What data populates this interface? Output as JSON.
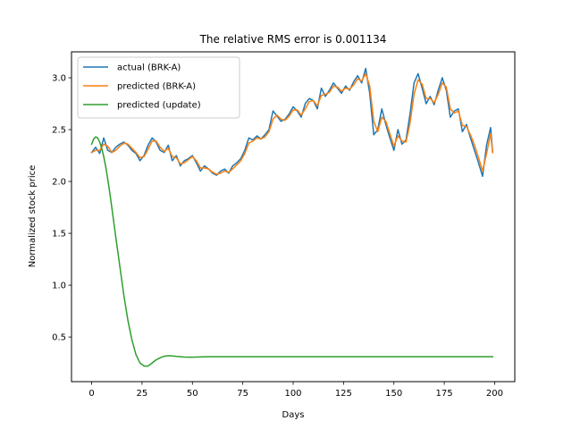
{
  "chart_data": {
    "type": "line",
    "title": "The relative RMS error is 0.001134",
    "xlabel": "Days",
    "ylabel": "Normalized stock price",
    "xlim": [
      -10,
      210
    ],
    "ylim": [
      0.07,
      3.25
    ],
    "xticks": [
      0,
      25,
      50,
      75,
      100,
      125,
      150,
      175,
      200
    ],
    "yticks": [
      0.5,
      1.0,
      1.5,
      2.0,
      2.5,
      3.0
    ],
    "ytick_labels": [
      "0.5",
      "1.0",
      "1.5",
      "2.0",
      "2.5",
      "3.0"
    ],
    "grid": false,
    "legend_position": "upper left",
    "series": [
      {
        "name": "actual (BRK-A)",
        "color": "#1f77b4",
        "x": [
          0,
          2,
          4,
          6,
          8,
          10,
          12,
          14,
          16,
          18,
          20,
          22,
          24,
          26,
          28,
          30,
          32,
          34,
          36,
          38,
          40,
          42,
          44,
          46,
          48,
          50,
          52,
          54,
          56,
          58,
          60,
          62,
          64,
          66,
          68,
          70,
          72,
          74,
          76,
          78,
          80,
          82,
          84,
          86,
          88,
          90,
          92,
          94,
          96,
          98,
          100,
          102,
          104,
          106,
          108,
          110,
          112,
          114,
          116,
          118,
          120,
          122,
          124,
          126,
          128,
          130,
          132,
          134,
          136,
          138,
          140,
          142,
          144,
          146,
          148,
          150,
          152,
          154,
          156,
          158,
          160,
          162,
          164,
          166,
          168,
          170,
          172,
          174,
          176,
          178,
          180,
          182,
          184,
          186,
          188,
          190,
          192,
          194,
          196,
          198,
          199
        ],
        "values": [
          2.28,
          2.33,
          2.27,
          2.42,
          2.3,
          2.28,
          2.33,
          2.36,
          2.38,
          2.35,
          2.3,
          2.27,
          2.2,
          2.25,
          2.35,
          2.42,
          2.38,
          2.3,
          2.28,
          2.35,
          2.2,
          2.25,
          2.15,
          2.2,
          2.22,
          2.25,
          2.18,
          2.1,
          2.15,
          2.12,
          2.08,
          2.06,
          2.1,
          2.12,
          2.08,
          2.15,
          2.18,
          2.22,
          2.3,
          2.42,
          2.4,
          2.44,
          2.41,
          2.45,
          2.5,
          2.68,
          2.63,
          2.58,
          2.6,
          2.65,
          2.72,
          2.68,
          2.62,
          2.75,
          2.8,
          2.78,
          2.7,
          2.9,
          2.82,
          2.88,
          2.95,
          2.9,
          2.85,
          2.92,
          2.88,
          2.96,
          3.02,
          2.95,
          3.09,
          2.85,
          2.45,
          2.5,
          2.7,
          2.55,
          2.42,
          2.3,
          2.5,
          2.36,
          2.4,
          2.65,
          2.95,
          3.04,
          2.9,
          2.75,
          2.82,
          2.74,
          2.88,
          3.0,
          2.88,
          2.62,
          2.68,
          2.7,
          2.48,
          2.55,
          2.42,
          2.3,
          2.18,
          2.05,
          2.35,
          2.52,
          2.28
        ]
      },
      {
        "name": "predicted (BRK-A)",
        "color": "#ff7f0e",
        "x": [
          0,
          2,
          4,
          6,
          8,
          10,
          12,
          14,
          16,
          18,
          20,
          22,
          24,
          26,
          28,
          30,
          32,
          34,
          36,
          38,
          40,
          42,
          44,
          46,
          48,
          50,
          52,
          54,
          56,
          58,
          60,
          62,
          64,
          66,
          68,
          70,
          72,
          74,
          76,
          78,
          80,
          82,
          84,
          86,
          88,
          90,
          92,
          94,
          96,
          98,
          100,
          102,
          104,
          106,
          108,
          110,
          112,
          114,
          116,
          118,
          120,
          122,
          124,
          126,
          128,
          130,
          132,
          134,
          136,
          138,
          140,
          142,
          144,
          146,
          148,
          150,
          152,
          154,
          156,
          158,
          160,
          162,
          164,
          166,
          168,
          170,
          172,
          174,
          176,
          178,
          180,
          182,
          184,
          186,
          188,
          190,
          192,
          194,
          196,
          198,
          199
        ],
        "values": [
          2.28,
          2.3,
          2.3,
          2.36,
          2.34,
          2.28,
          2.3,
          2.34,
          2.37,
          2.36,
          2.32,
          2.28,
          2.23,
          2.24,
          2.31,
          2.39,
          2.39,
          2.33,
          2.29,
          2.32,
          2.24,
          2.23,
          2.17,
          2.18,
          2.21,
          2.24,
          2.2,
          2.13,
          2.13,
          2.12,
          2.09,
          2.07,
          2.08,
          2.1,
          2.09,
          2.12,
          2.16,
          2.2,
          2.27,
          2.37,
          2.39,
          2.42,
          2.41,
          2.43,
          2.48,
          2.6,
          2.64,
          2.6,
          2.59,
          2.63,
          2.69,
          2.69,
          2.64,
          2.7,
          2.77,
          2.78,
          2.73,
          2.83,
          2.84,
          2.86,
          2.92,
          2.91,
          2.87,
          2.9,
          2.89,
          2.93,
          2.99,
          2.97,
          3.04,
          2.92,
          2.58,
          2.48,
          2.62,
          2.58,
          2.46,
          2.34,
          2.44,
          2.39,
          2.38,
          2.56,
          2.84,
          2.98,
          2.94,
          2.8,
          2.8,
          2.76,
          2.84,
          2.95,
          2.91,
          2.7,
          2.66,
          2.68,
          2.54,
          2.53,
          2.45,
          2.35,
          2.23,
          2.1,
          2.27,
          2.46,
          2.28
        ]
      },
      {
        "name": "predicted (update)",
        "color": "#2ca02c",
        "x": [
          0,
          1,
          2,
          3,
          4,
          5,
          6,
          7,
          8,
          9,
          10,
          12,
          14,
          16,
          18,
          20,
          22,
          24,
          26,
          28,
          30,
          32,
          34,
          36,
          38,
          40,
          42,
          44,
          46,
          48,
          50,
          52,
          54,
          56,
          58,
          60,
          62,
          64,
          66,
          68,
          70,
          75,
          80,
          90,
          100,
          120,
          140,
          160,
          180,
          199
        ],
        "values": [
          2.36,
          2.41,
          2.43,
          2.42,
          2.38,
          2.32,
          2.24,
          2.14,
          2.02,
          1.89,
          1.75,
          1.46,
          1.18,
          0.9,
          0.66,
          0.47,
          0.33,
          0.25,
          0.22,
          0.22,
          0.25,
          0.28,
          0.3,
          0.315,
          0.32,
          0.318,
          0.313,
          0.31,
          0.307,
          0.306,
          0.306,
          0.307,
          0.308,
          0.309,
          0.31,
          0.31,
          0.31,
          0.31,
          0.31,
          0.31,
          0.31,
          0.31,
          0.31,
          0.31,
          0.31,
          0.31,
          0.31,
          0.31,
          0.31,
          0.31
        ]
      }
    ]
  }
}
